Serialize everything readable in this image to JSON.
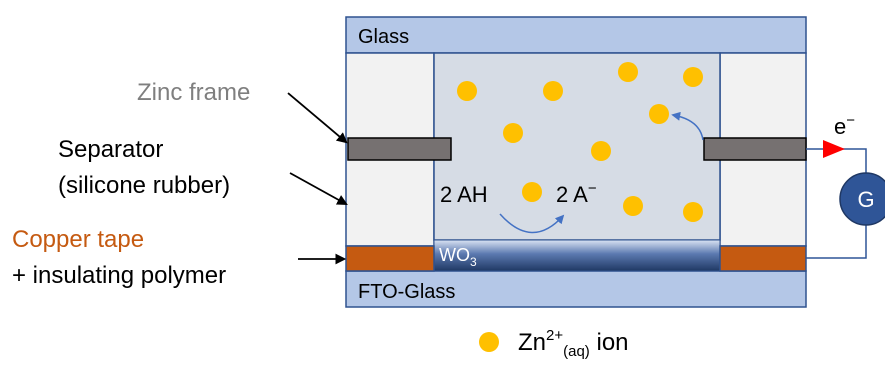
{
  "labels": {
    "glass_top": "Glass",
    "glass_bottom": "FTO-Glass",
    "zinc_frame": "Zinc frame",
    "separator_line1": "Separator",
    "separator_line2": "(silicone rubber)",
    "copper_line1": "Copper tape",
    "copper_line2": "+ insulating polymer",
    "wo3_main": "WO",
    "wo3_sub": "3",
    "reaction_left": "2 AH",
    "reaction_right": "2 A",
    "reaction_right_sup": "−",
    "electron": "e",
    "electron_sup": "−",
    "galvanometer": "G",
    "legend_main": "Zn",
    "legend_sup": "2+",
    "legend_sub": "(aq)",
    "legend_suffix": " ion"
  },
  "colors": {
    "glass": "#b4c7e7",
    "glass_border": "#2f528f",
    "separator": "#f2f2f2",
    "electrolyte": "#d6dce5",
    "zinc": "#767171",
    "copper": "#c55a11",
    "wo3_top": "#dae3f3",
    "wo3_bottom": "#1f3864",
    "ion": "#ffc000",
    "galvanometer": "#2f5597",
    "arrow_red": "#ff0000",
    "label_gray": "#7f7f7f",
    "label_copper": "#c55a11",
    "reaction_arrow": "#4472c4"
  },
  "icons": {
    "ion_marker": "orange-filled-circle",
    "electron_arrow": "red-triangle-arrow"
  }
}
